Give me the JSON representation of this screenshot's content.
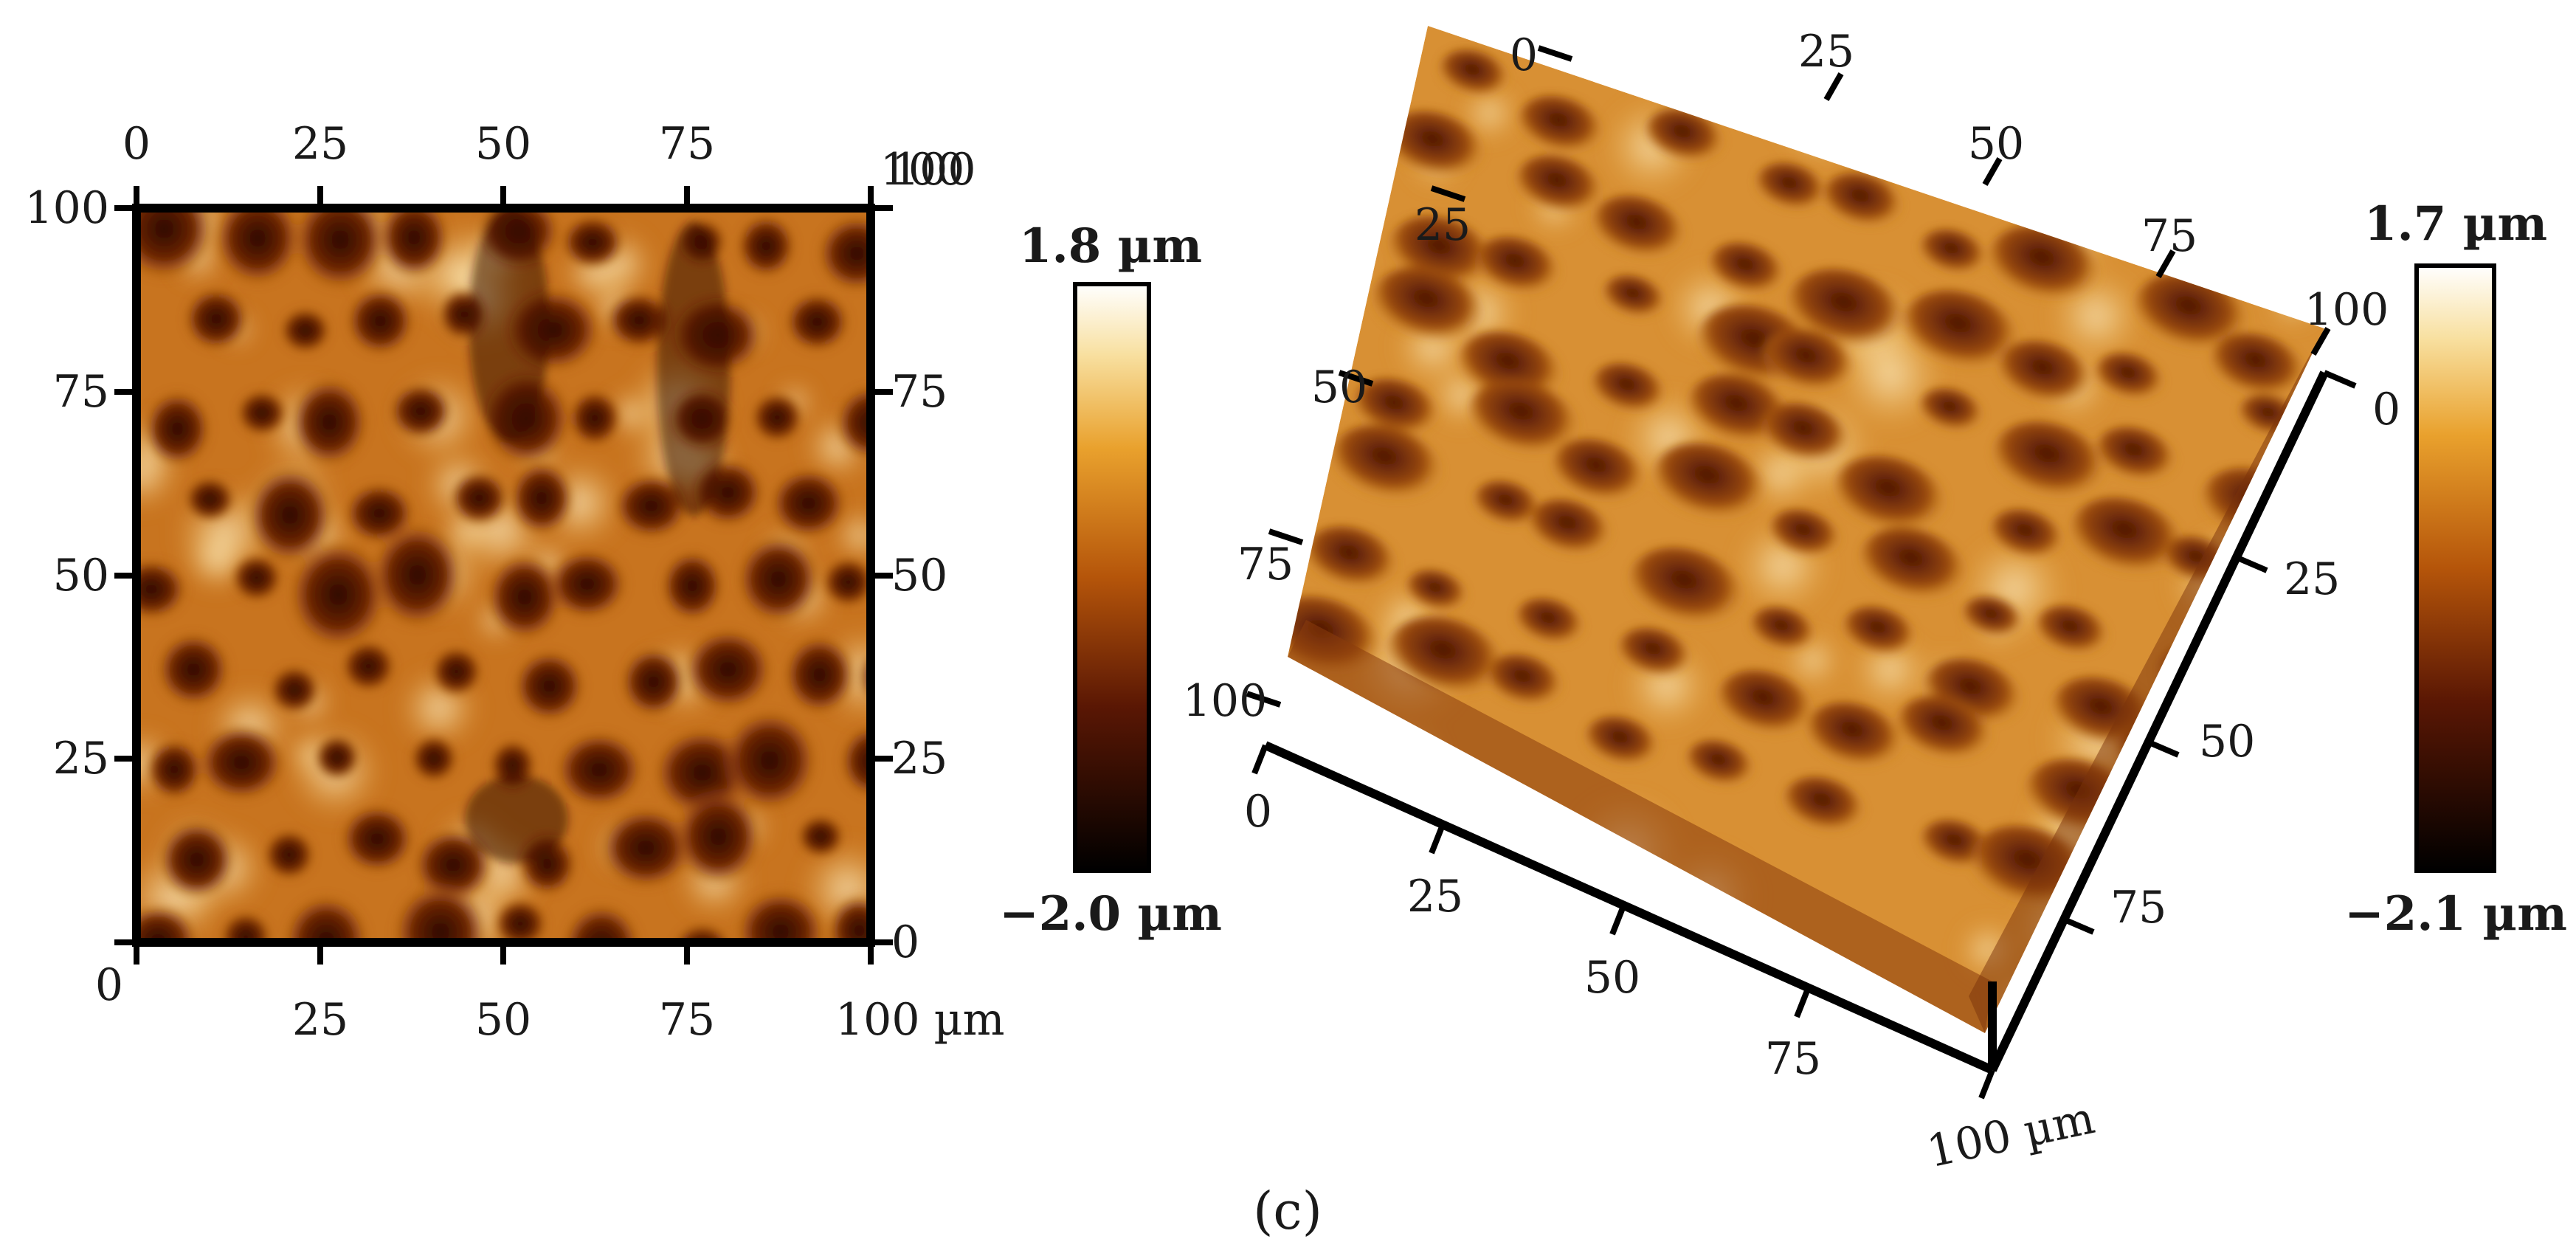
{
  "figure": {
    "caption": "(c)",
    "panel_2d": {
      "x_ticks_top": [
        "0",
        "25",
        "50",
        "75",
        "100"
      ],
      "x_ticks_bottom": [
        "0",
        "25",
        "50",
        "75",
        "100 µm"
      ],
      "y_ticks_left": [
        "100",
        "75",
        "50",
        "25"
      ],
      "y_ticks_right": [
        "100",
        "75",
        "50",
        "25",
        "0"
      ],
      "colorbar": {
        "max": "1.8 µm",
        "min": "−2.0 µm"
      }
    },
    "panel_3d": {
      "left_axis_ticks": [
        "0",
        "25",
        "50",
        "75",
        "100"
      ],
      "top_axis_ticks": [
        "25",
        "50",
        "75"
      ],
      "bottom_axis_ticks": [
        "0",
        "25",
        "50",
        "75",
        "100 µm"
      ],
      "right_axis_ticks": [
        "0",
        "25",
        "50",
        "75"
      ],
      "height_ticks": [
        "100",
        "0"
      ],
      "colorbar": {
        "max": "1.7 µm",
        "min": "−2.1 µm"
      }
    }
  }
}
